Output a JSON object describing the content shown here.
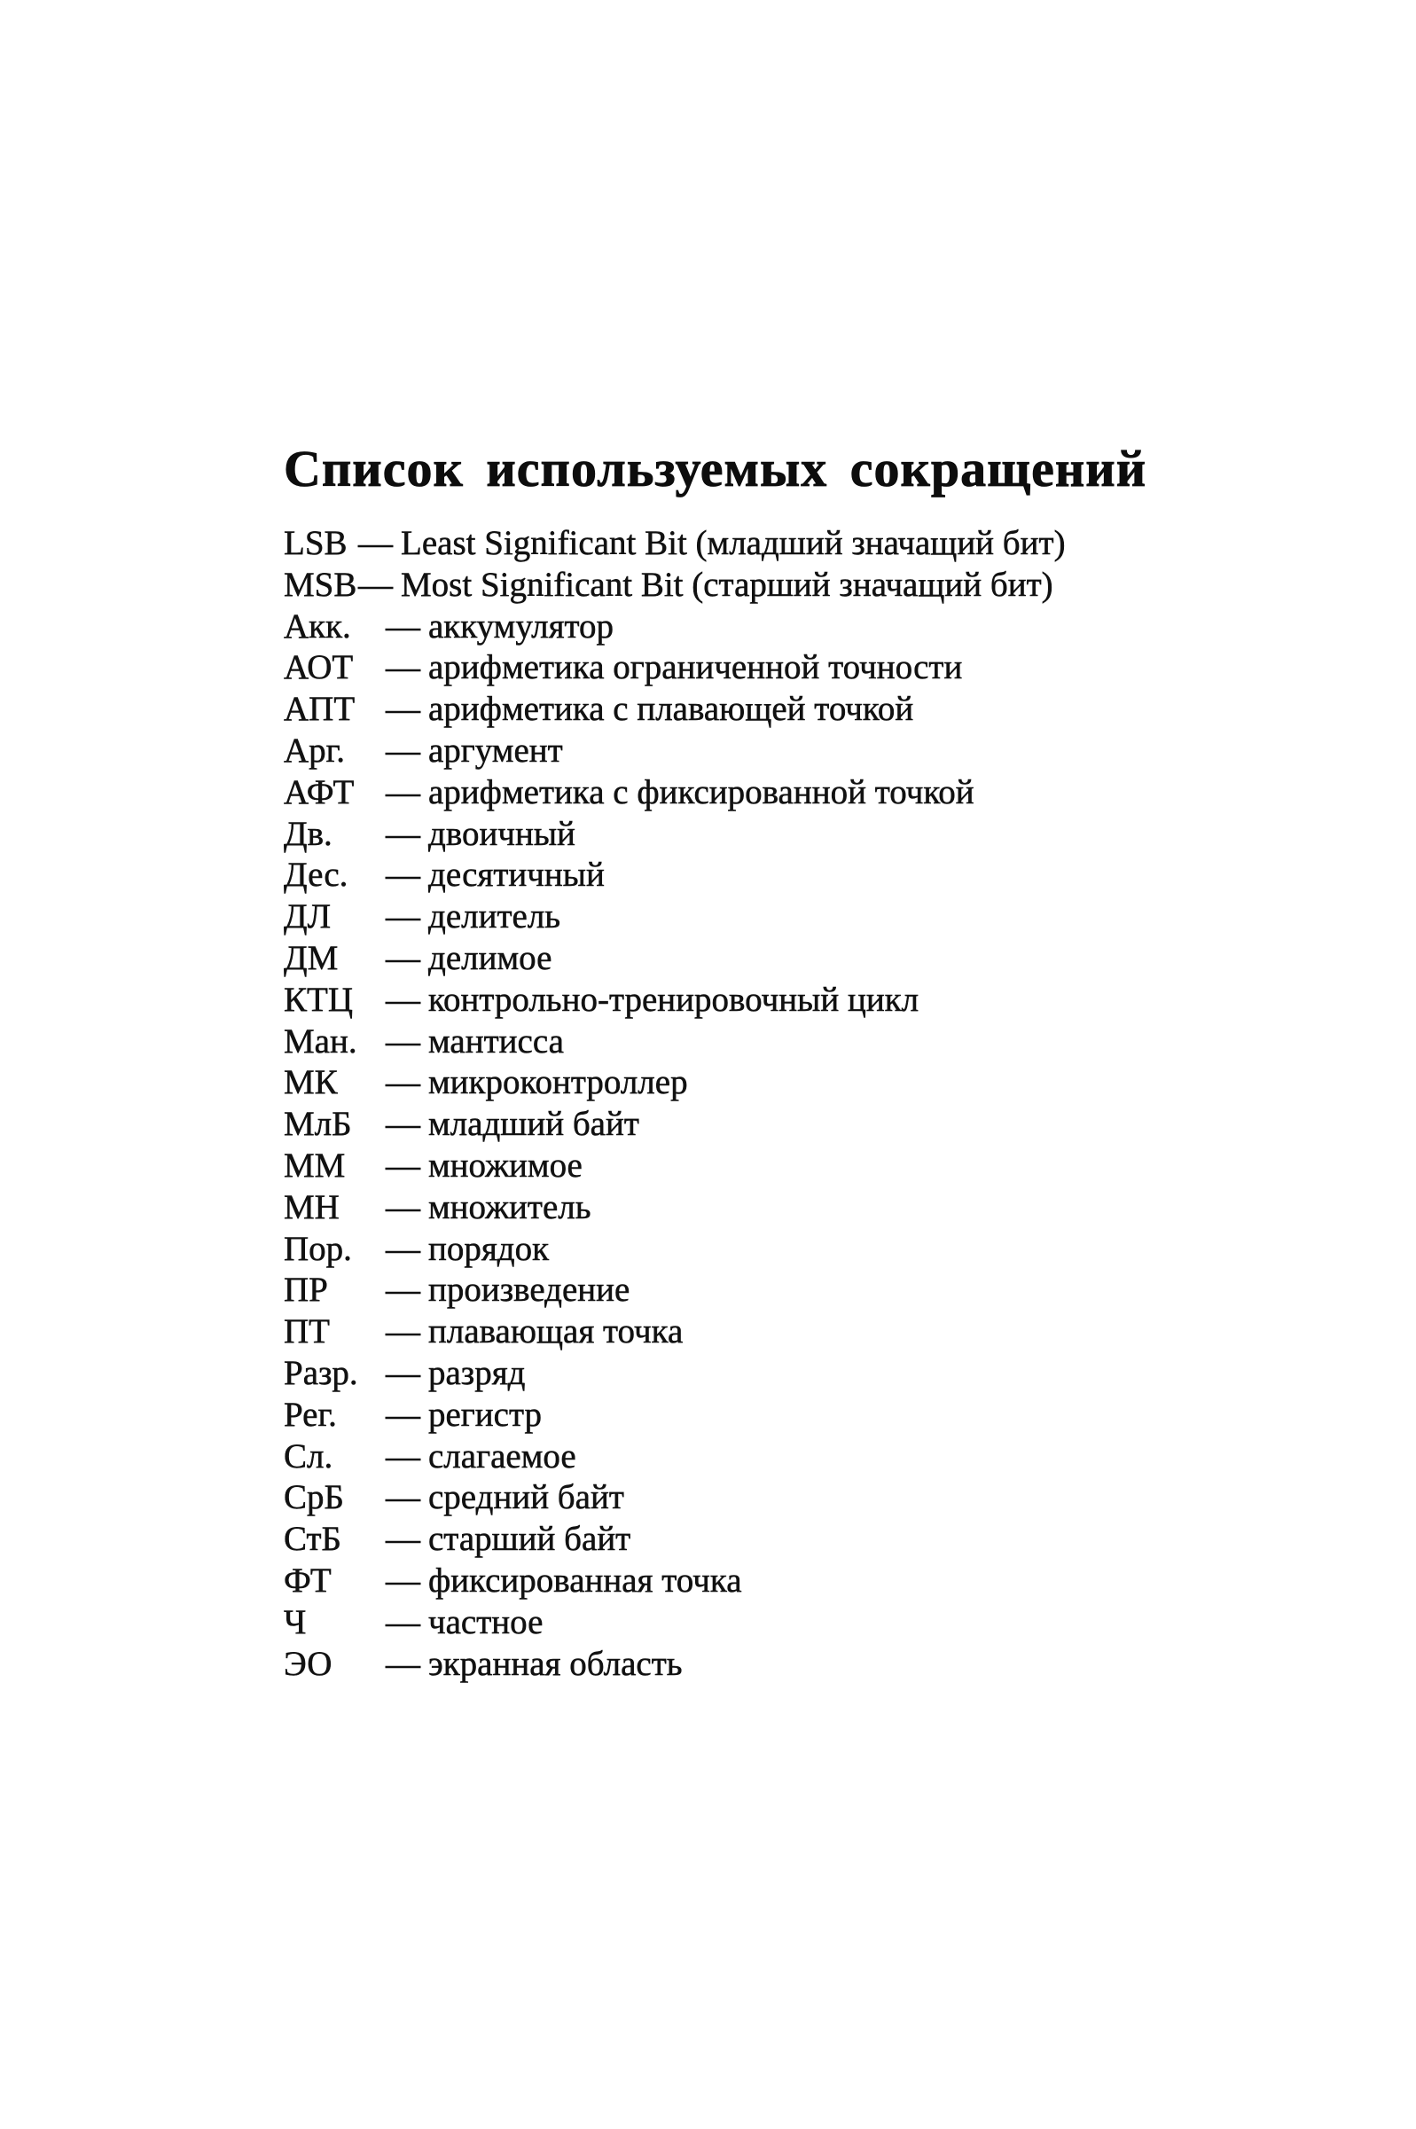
{
  "page": {
    "title": "Список используемых сокращений"
  },
  "dash": "—",
  "abbreviations": [
    {
      "abbr": "LSB",
      "desc": "Least Significant Bit (младший значащий бит)",
      "tight": true
    },
    {
      "abbr": "MSB",
      "desc": "Most Significant Bit (старший значащий бит)",
      "tight": true
    },
    {
      "abbr": "Акк.",
      "desc": "аккумулятор"
    },
    {
      "abbr": "АОТ",
      "desc": "арифметика ограниченной точности"
    },
    {
      "abbr": "АПТ",
      "desc": "арифметика с плавающей точкой"
    },
    {
      "abbr": "Арг.",
      "desc": "аргумент"
    },
    {
      "abbr": "АФТ",
      "desc": "арифметика с фиксированной точкой"
    },
    {
      "abbr": "Дв.",
      "desc": "двоичный"
    },
    {
      "abbr": "Дес.",
      "desc": "десятичный"
    },
    {
      "abbr": "ДЛ",
      "desc": "делитель"
    },
    {
      "abbr": "ДМ",
      "desc": "делимое"
    },
    {
      "abbr": "КТЦ",
      "desc": "контрольно-тренировочный цикл"
    },
    {
      "abbr": "Ман.",
      "desc": "мантисса"
    },
    {
      "abbr": "МК",
      "desc": "микроконтроллер"
    },
    {
      "abbr": "МлБ",
      "desc": "младший байт"
    },
    {
      "abbr": "ММ",
      "desc": "множимое"
    },
    {
      "abbr": "МН",
      "desc": "множитель"
    },
    {
      "abbr": "Пор.",
      "desc": "порядок"
    },
    {
      "abbr": "ПР",
      "desc": "произведение"
    },
    {
      "abbr": "ПТ",
      "desc": "плавающая точка"
    },
    {
      "abbr": "Разр.",
      "desc": "разряд"
    },
    {
      "abbr": "Рег.",
      "desc": "регистр"
    },
    {
      "abbr": "Сл.",
      "desc": "слагаемое"
    },
    {
      "abbr": "СрБ",
      "desc": "средний байт"
    },
    {
      "abbr": "СтБ",
      "desc": "старший байт"
    },
    {
      "abbr": "ФТ",
      "desc": "фиксированная точка"
    },
    {
      "abbr": "Ч",
      "desc": "частное"
    },
    {
      "abbr": "ЭО",
      "desc": "экранная область"
    }
  ]
}
